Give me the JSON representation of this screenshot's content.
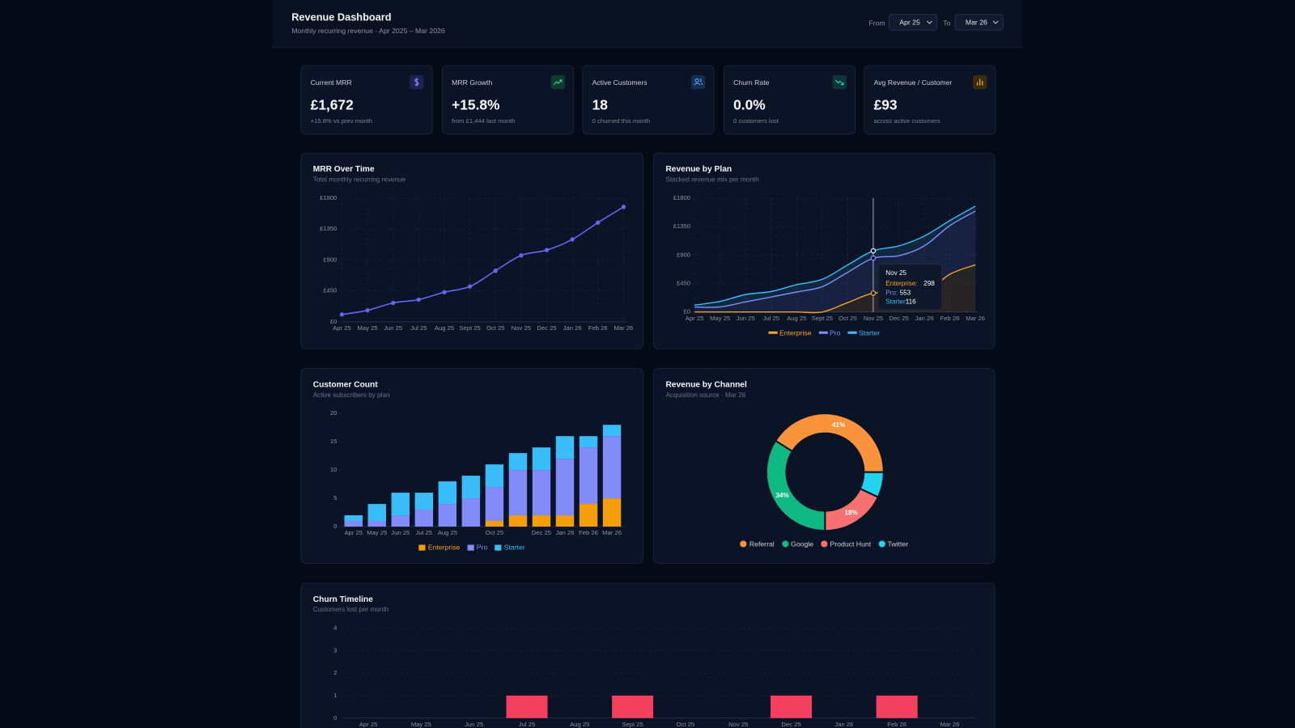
{
  "header": {
    "title": "Revenue Dashboard",
    "subtitle": "Monthly recurring revenue · Apr 2025 – Mar 2026",
    "from_label": "From",
    "from_value": "Apr 25",
    "to_label": "To",
    "to_value": "Mar 26"
  },
  "kpis": [
    {
      "label": "Current MRR",
      "value": "£1,672",
      "note": "+15.8% vs prev month"
    },
    {
      "label": "MRR Growth",
      "value": "+15.8%",
      "note": "from £1,444 last month"
    },
    {
      "label": "Active Customers",
      "value": "18",
      "note": "0 churned this month"
    },
    {
      "label": "Churn Rate",
      "value": "0.0%",
      "note": "0 customers lost"
    },
    {
      "label": "Avg Revenue / Customer",
      "value": "£93",
      "note": "across active customers"
    }
  ],
  "chart_data": [
    {
      "type": "line",
      "title": "MRR Over Time",
      "subtitle": "Total monthly recurring revenue",
      "categories": [
        "Apr 25",
        "May 25",
        "Jun 25",
        "Jul 25",
        "Aug 25",
        "Sept 25",
        "Oct 25",
        "Nov 25",
        "Dec 25",
        "Jan 26",
        "Feb 26",
        "Mar 26"
      ],
      "values": [
        108,
        168,
        276,
        324,
        432,
        516,
        744,
        967,
        1044,
        1200,
        1444,
        1672
      ],
      "color": "#6366f1",
      "ylim": [
        0,
        1800
      ],
      "yticks": [
        {
          "value": 0,
          "label": "£0"
        },
        {
          "value": 450,
          "label": "£450"
        },
        {
          "value": 900,
          "label": "£900"
        },
        {
          "value": 1350,
          "label": "£1350"
        },
        {
          "value": 1800,
          "label": "£1800"
        }
      ],
      "grid": true
    },
    {
      "type": "stacked_area",
      "title": "Revenue by Plan",
      "subtitle": "Stacked revenue mix per month",
      "categories": [
        "Apr 25",
        "May 25",
        "Jun 25",
        "Jul 25",
        "Aug 25",
        "Sept 25",
        "Oct 25",
        "Nov 25",
        "Dec 25",
        "Jan 26",
        "Feb 26",
        "Mar 26"
      ],
      "series": [
        {
          "name": "Enterprise",
          "color": "#f5a524",
          "values": [
            0,
            0,
            0,
            0,
            0,
            0,
            149,
            298,
            298,
            298,
            596,
            745
          ]
        },
        {
          "name": "Pro",
          "color": "#818cf8",
          "values": [
            79,
            81,
            160,
            237,
            316,
            400,
            479,
            553,
            591,
            747,
            770,
            849
          ]
        },
        {
          "name": "Starter",
          "color": "#38bdf8",
          "values": [
            29,
            87,
            116,
            87,
            116,
            116,
            116,
            116,
            155,
            155,
            78,
            78
          ]
        }
      ],
      "ylim": [
        0,
        1800
      ],
      "yticks": [
        {
          "value": 0,
          "label": "£0"
        },
        {
          "value": 450,
          "label": "£450"
        },
        {
          "value": 900,
          "label": "£900"
        },
        {
          "value": 1350,
          "label": "£1350"
        },
        {
          "value": 1800,
          "label": "£1800"
        }
      ],
      "grid": true,
      "legend": "bottom",
      "tooltip_index": 7,
      "tooltip_labels": [
        "Enterprise:",
        "Pro:",
        "Starter:"
      ]
    },
    {
      "type": "stacked_bar",
      "title": "Customer Count",
      "subtitle": "Active subscribers by plan",
      "categories": [
        "Apr 25",
        "May 25",
        "Jun 25",
        "Jul 25",
        "Aug 25",
        null,
        "Oct 25",
        null,
        "Dec 25",
        "Jan 26",
        "Feb 26",
        "Mar 26"
      ],
      "series": [
        {
          "name": "Enterprise",
          "color": "#f59e0b",
          "values": [
            0,
            0,
            0,
            0,
            0,
            0,
            1,
            2,
            2,
            2,
            4,
            5
          ]
        },
        {
          "name": "Pro",
          "color": "#818cf8",
          "values": [
            1,
            1,
            2,
            3,
            4,
            5,
            6,
            8,
            8,
            10,
            10,
            11
          ]
        },
        {
          "name": "Starter",
          "color": "#38bdf8",
          "values": [
            1,
            3,
            4,
            3,
            4,
            4,
            4,
            3,
            4,
            4,
            2,
            2
          ]
        }
      ],
      "ylim": [
        0,
        20
      ],
      "yticks": [
        0,
        5,
        10,
        15,
        20
      ],
      "grid": false,
      "legend": "bottom"
    },
    {
      "type": "donut",
      "title": "Revenue by Channel",
      "subtitle": "Acquisition source · Mar 26",
      "categories": [
        "Referral",
        "Google",
        "Product Hunt",
        "Twitter"
      ],
      "values": [
        41,
        34,
        18,
        7
      ],
      "value_labels": [
        "41%",
        "34%",
        "18%",
        null
      ],
      "colors": [
        "#fb923c",
        "#10b981",
        "#f87171",
        "#22d3ee"
      ],
      "legend": "bottom"
    },
    {
      "type": "bar",
      "title": "Churn Timeline",
      "subtitle": "Customers lost per month",
      "categories": [
        "Apr 25",
        "May 25",
        "Jun 25",
        "Jul 25",
        "Aug 25",
        "Sept 25",
        "Oct 25",
        "Nov 25",
        "Dec 25",
        "Jan 26",
        "Feb 26",
        "Mar 26"
      ],
      "values": [
        0,
        0,
        0,
        1,
        0,
        1,
        0,
        0,
        1,
        0,
        1,
        0
      ],
      "color": "#f43f5e",
      "ylim": [
        0,
        4
      ],
      "yticks": [
        0,
        1,
        2,
        3,
        4
      ],
      "grid": true
    }
  ]
}
